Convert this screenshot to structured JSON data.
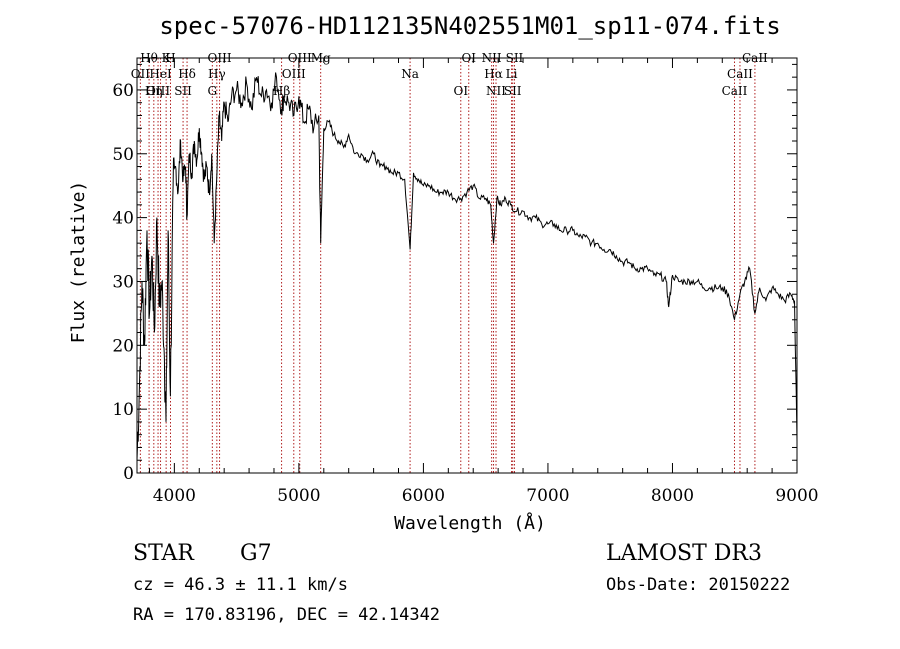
{
  "chart_data": {
    "type": "line",
    "title": "spec-57076-HD112135N402551M01_sp11-074.fits",
    "xlabel": "Wavelength (Å)",
    "ylabel": "Flux (relative)",
    "xlim": [
      3700,
      9000
    ],
    "ylim": [
      0,
      65
    ],
    "xticks": [
      4000,
      5000,
      6000,
      7000,
      8000,
      9000
    ],
    "yticks": [
      0,
      10,
      20,
      30,
      40,
      50,
      60
    ],
    "grid": false,
    "series": [
      {
        "name": "flux",
        "x": [
          3700,
          3720,
          3740,
          3760,
          3780,
          3800,
          3820,
          3840,
          3860,
          3880,
          3900,
          3920,
          3933,
          3950,
          3968,
          3990,
          4010,
          4030,
          4050,
          4070,
          4090,
          4101,
          4120,
          4140,
          4160,
          4180,
          4200,
          4220,
          4240,
          4260,
          4280,
          4300,
          4320,
          4340,
          4360,
          4380,
          4400,
          4430,
          4460,
          4500,
          4540,
          4580,
          4620,
          4660,
          4700,
          4740,
          4780,
          4820,
          4861,
          4880,
          4920,
          4960,
          5000,
          5040,
          5080,
          5120,
          5160,
          5175,
          5200,
          5240,
          5280,
          5320,
          5360,
          5400,
          5450,
          5500,
          5550,
          5600,
          5650,
          5700,
          5750,
          5800,
          5850,
          5893,
          5920,
          5960,
          6000,
          6050,
          6100,
          6150,
          6200,
          6250,
          6300,
          6350,
          6400,
          6450,
          6500,
          6540,
          6563,
          6590,
          6620,
          6660,
          6700,
          6750,
          6800,
          6850,
          6900,
          6950,
          7000,
          7050,
          7100,
          7150,
          7200,
          7250,
          7300,
          7350,
          7400,
          7450,
          7500,
          7550,
          7600,
          7650,
          7700,
          7750,
          7800,
          7850,
          7900,
          7950,
          7970,
          8000,
          8050,
          8100,
          8150,
          8200,
          8250,
          8300,
          8350,
          8400,
          8450,
          8498,
          8542,
          8580,
          8620,
          8662,
          8700,
          8750,
          8800,
          8850,
          8900,
          8950,
          8980,
          9000
        ],
        "y": [
          2,
          14,
          30,
          20,
          38,
          25,
          34,
          22,
          40,
          26,
          30,
          18,
          8,
          38,
          12,
          45,
          48,
          44,
          52,
          46,
          48,
          40,
          50,
          47,
          52,
          49,
          54,
          50,
          46,
          48,
          44,
          50,
          36,
          46,
          56,
          52,
          58,
          55,
          59,
          60,
          58,
          61,
          57,
          62,
          59,
          60,
          58,
          62,
          57,
          59,
          58,
          56,
          59,
          55,
          57,
          54,
          56,
          36,
          54,
          55,
          53,
          52,
          51,
          53,
          50,
          50,
          49,
          50,
          48,
          48,
          47,
          47,
          46,
          35,
          47,
          46,
          45,
          45,
          44,
          44,
          44,
          43,
          43,
          44,
          45,
          43,
          43,
          42,
          36,
          43,
          42,
          43,
          42,
          41,
          41,
          40,
          40,
          39,
          39,
          39,
          38,
          38,
          38,
          37,
          37,
          36,
          36,
          35,
          35,
          34,
          33,
          33,
          32,
          32,
          32,
          31,
          31,
          30,
          26,
          31,
          30,
          30,
          30,
          30,
          29,
          29,
          29,
          29,
          28,
          24,
          28,
          30,
          32,
          25,
          29,
          27,
          29,
          28,
          27,
          28,
          27,
          5
        ]
      }
    ],
    "lines": [
      {
        "label": "Hθ",
        "x": 3797
      },
      {
        "label": "OII",
        "x": 3727
      },
      {
        "label": "OIII",
        "x": 3869
      },
      {
        "label": "K",
        "x": 3934
      },
      {
        "label": "HeI",
        "x": 3889
      },
      {
        "label": "Hη",
        "x": 3835
      },
      {
        "label": "H",
        "x": 3969
      },
      {
        "label": "Hδ",
        "x": 4102
      },
      {
        "label": "SII",
        "x": 4070
      },
      {
        "label": "OIII",
        "x": 4363
      },
      {
        "label": "Hγ",
        "x": 4341
      },
      {
        "label": "G",
        "x": 4305
      },
      {
        "label": "OIII",
        "x": 5007
      },
      {
        "label": "OIII",
        "x": 4959
      },
      {
        "label": "Hβ",
        "x": 4861
      },
      {
        "label": "Mg",
        "x": 5175
      },
      {
        "label": "Na",
        "x": 5893
      },
      {
        "label": "OI",
        "x": 6300
      },
      {
        "label": "OI",
        "x": 6364
      },
      {
        "label": "Hα",
        "x": 6563
      },
      {
        "label": "SII",
        "x": 6717
      },
      {
        "label": "NII",
        "x": 6548
      },
      {
        "label": "Li",
        "x": 6708
      },
      {
        "label": "NII",
        "x": 6583
      },
      {
        "label": "SII",
        "x": 6731
      },
      {
        "label": "CaII",
        "x": 8542
      },
      {
        "label": "CaII",
        "x": 8498
      },
      {
        "label": "CaII",
        "x": 8662
      }
    ],
    "line_color": "#b02020",
    "trace_color": "#000000"
  },
  "info": {
    "object_type": "STAR",
    "subclass": "G7",
    "survey": "LAMOST DR3",
    "cz": "cz = 46.3 ± 11.1 km/s",
    "obs_date": "Obs-Date: 20150222",
    "coords": "RA = 170.83196, DEC =  42.14342"
  }
}
